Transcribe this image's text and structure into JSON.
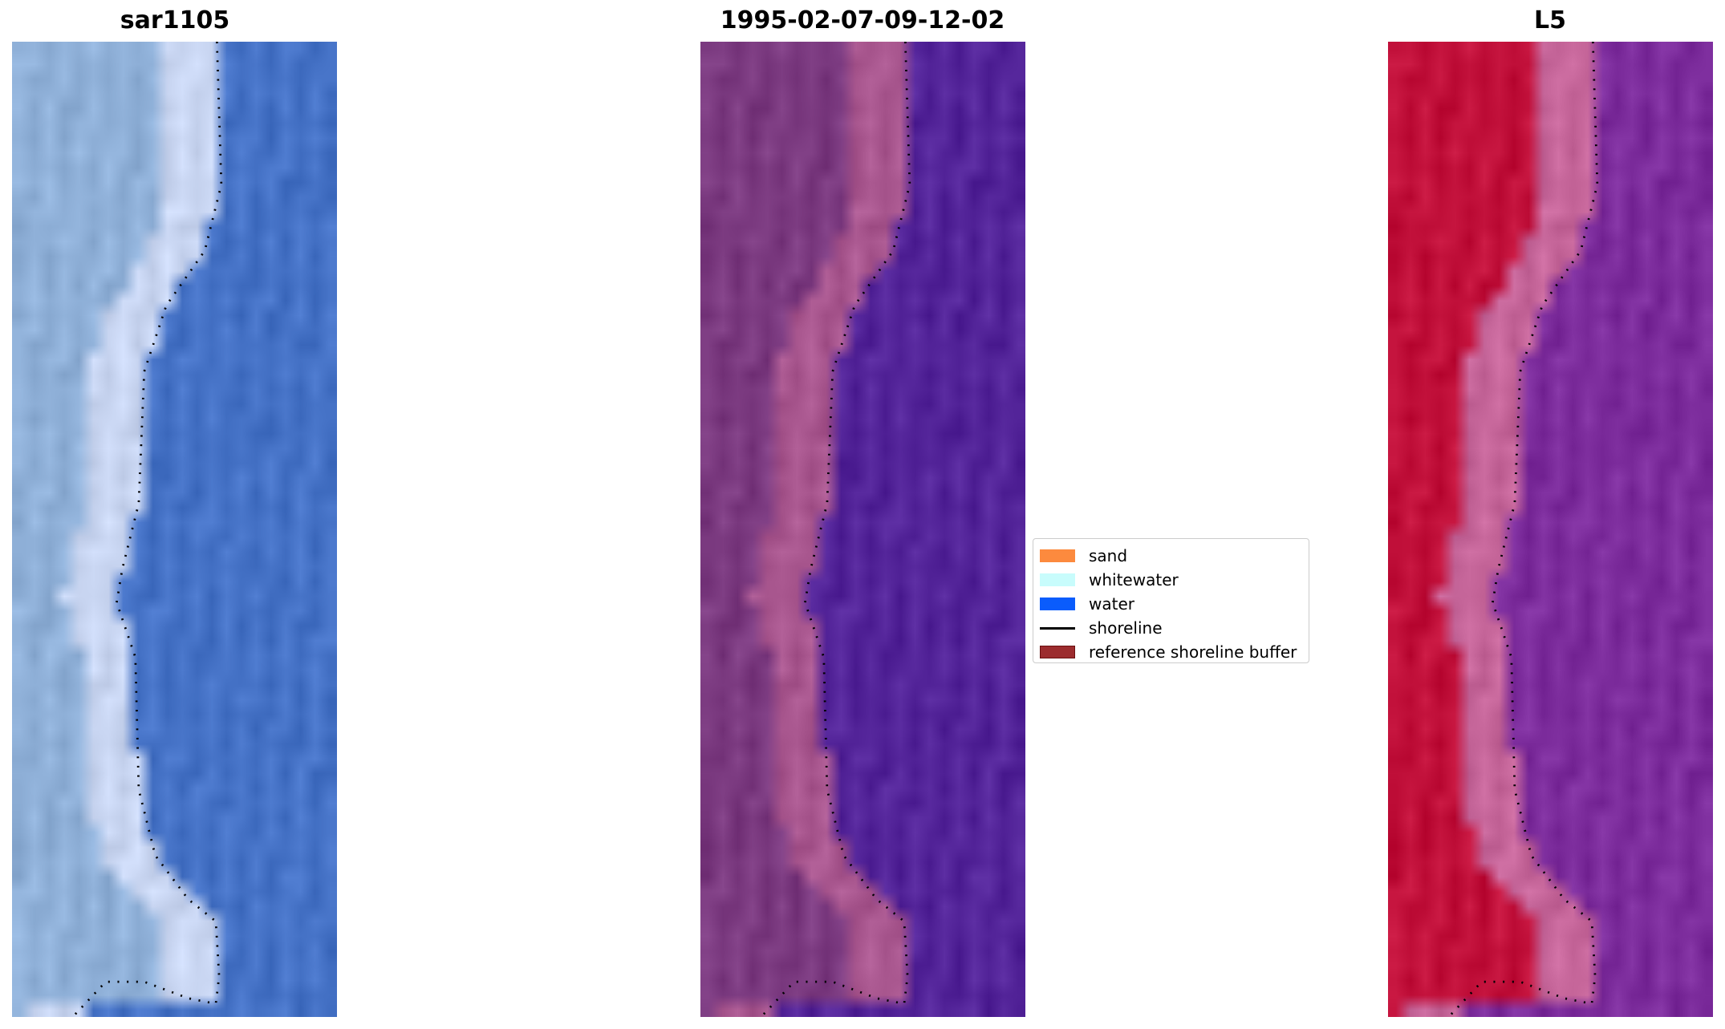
{
  "panels": [
    {
      "title": "sar1105",
      "colors": {
        "land": "#8fb0d8",
        "beach": "#c9d6f2",
        "water": "#4572c6"
      }
    },
    {
      "title": "1995-02-07-09-12-02",
      "colors": {
        "land": "#7b3a80",
        "beach": "#a9578f",
        "water": "#532499"
      }
    },
    {
      "title": "L5",
      "colors": {
        "land": "#c1103a",
        "beach": "#c6669a",
        "water": "#7c2c9c"
      }
    }
  ],
  "legend": {
    "items": [
      {
        "label": "sand",
        "color": "#fc8a3e",
        "kind": "patch"
      },
      {
        "label": "whitewater",
        "color": "#c8fcfc",
        "kind": "patch"
      },
      {
        "label": "water",
        "color": "#0a5cfc",
        "kind": "patch"
      },
      {
        "label": "shoreline",
        "color": "#000000",
        "kind": "line"
      },
      {
        "label": "reference shoreline buffer",
        "color": "#9c2c2e",
        "kind": "patch"
      }
    ]
  }
}
